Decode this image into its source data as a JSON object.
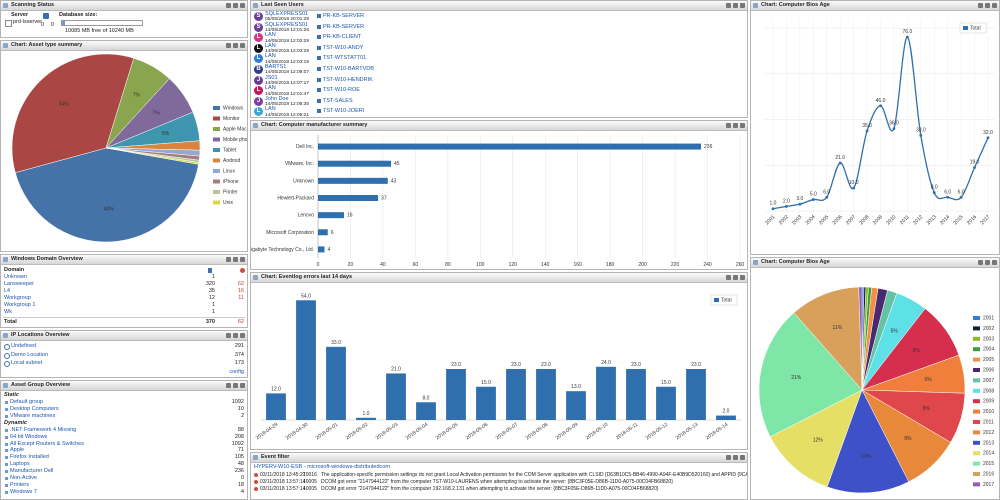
{
  "scanning_status": {
    "title": "Scanning Status",
    "server_label": "Server",
    "server": "prd-lsserver",
    "counts": [
      0,
      0
    ],
    "database_label": "Database size:",
    "database_size": "10085 MB free of 10240 MB"
  },
  "windows_domain": {
    "title": "Windows Domain Overview",
    "header": "Domain",
    "rows": [
      [
        "Unknown",
        1
      ],
      [
        "Lansweeper",
        320,
        62
      ],
      [
        "L4",
        35,
        16
      ],
      [
        "Workgroup",
        12,
        11
      ],
      [
        "Workgroup 1",
        1
      ],
      [
        "Wk",
        1
      ]
    ],
    "total": [
      "Total",
      370,
      62
    ]
  },
  "ip_locations": {
    "title": "IP Locations Overview",
    "rows": [
      [
        "Undefined",
        291
      ],
      [
        "Demo Location",
        374
      ],
      [
        "Local subnet",
        173
      ]
    ],
    "link": "config"
  },
  "asset_groups": {
    "title": "Asset Group Overview",
    "sections": [
      {
        "heading": "Static",
        "items": [
          [
            "Default group",
            1092
          ],
          [
            "Desktop Computers",
            10
          ],
          [
            "VMware machines",
            2
          ]
        ]
      },
      {
        "heading": "Dynamic",
        "items": [
          [
            ".NET Framework 4 Missing",
            88
          ],
          [
            "64 bit Windows",
            208
          ],
          [
            "All Except Routers & Switches",
            1092
          ],
          [
            "Apple",
            71
          ],
          [
            "Firefox Installed",
            105
          ],
          [
            "Laptops",
            48
          ],
          [
            "Manufacturer Dell",
            236
          ],
          [
            "Non-Active",
            0
          ],
          [
            "Printers",
            18
          ],
          [
            "Windows 7",
            4
          ]
        ]
      }
    ]
  },
  "last_seen_users": {
    "title": "Last Seen Users",
    "rows": [
      {
        "initial": "S",
        "color": "#6a3d9a",
        "name": "SQLEXPRESS01",
        "time": "05/05/2018 20:01:29",
        "computer": "PR-KB-SERVER"
      },
      {
        "initial": "S",
        "color": "#6a3d9a",
        "name": "SQLEXPRESS01",
        "time": "14/05/2018 12:01:26",
        "computer": "PR-KB-SERVER"
      },
      {
        "initial": "L",
        "color": "#d63384",
        "name": "LAN",
        "time": "14/05/2018 12:02:29",
        "computer": "PR-KB-CLIENT"
      },
      {
        "initial": "L",
        "color": "#111111",
        "name": "LAN",
        "time": "14/05/2018 12:03:28",
        "computer": "TST-W10-ANDY"
      },
      {
        "initial": "L",
        "color": "#2a7fd4",
        "name": "LAN",
        "time": "14/05/2018 12:03:19",
        "computer": "TST-WTSTATT01"
      },
      {
        "initial": "B",
        "color": "#2c3e8c",
        "name": "BARTS1",
        "time": "14/05/2018 12:09:07",
        "computer": "TST-W10-BARTVDB"
      },
      {
        "initial": "J",
        "color": "#6a3d9a",
        "name": "JS01",
        "time": "14/05/2018 12:07:17",
        "computer": "TST-W10-HENDRIK"
      },
      {
        "initial": "L",
        "color": "#c2185b",
        "name": "LAN",
        "time": "14/05/2018 12:01:47",
        "computer": "TST-W10-ROE"
      },
      {
        "initial": "J",
        "color": "#7b3fa0",
        "name": "John Doe",
        "time": "14/05/2018 12:06:35",
        "computer": "TST-SALES"
      },
      {
        "initial": "L",
        "color": "#3fa7d6",
        "name": "LAN",
        "time": "14/05/2018 12:05:21",
        "computer": "TST-W10-JOERI"
      }
    ]
  },
  "event_filter": {
    "title": "Event filter",
    "source": "HYPERV-W10-ESB - microsoft-windows-distributedcom",
    "rows": [
      [
        "03/11/2018 13:45:27",
        "10016",
        "The application-specific permission settings do not grant Local Activation permission for the COM Server application with CLSID {D63B10C5-BB46-4990-A94F-E40B9D520160} and APPID {9CA88EE3-ACB7-47C8-AFC4-AB702511C276}"
      ],
      [
        "03/11/2018 13:57:14",
        "10005",
        "DCOM got error \"2147944122\" from the computer TST-W10-LAURENS when attempting to activate the server: {8BC3F05E-D86B-11D0-A075-00C04FB68820}"
      ],
      [
        "03/11/2018 13:57:14",
        "10005",
        "DCOM got error \"2147944122\" from the computer 192.168.2.131 when attempting to activate the server: {8BC3F05E-D86B-11D0-A075-00C04FB68820}"
      ]
    ]
  },
  "chart_data": [
    {
      "type": "pie",
      "title": "Chart: Asset type summary",
      "categories": [
        "Windows",
        "Monitor",
        "Apple Mac",
        "Mobile phone",
        "Tablet",
        "Android",
        "Linux",
        "iPhone",
        "Printer",
        "Unix"
      ],
      "values": [
        43,
        34,
        7,
        7,
        5,
        1.6,
        1,
        0.7,
        0.4,
        0.3
      ],
      "value_labels": [
        "43%",
        "34%",
        "7%",
        "7%",
        "5%",
        null,
        null,
        null,
        null,
        null
      ],
      "colors": [
        "#4572a7",
        "#aa4643",
        "#89a54e",
        "#80699b",
        "#3d96ae",
        "#db843d",
        "#92a8cd",
        "#a47d7c",
        "#b5ca92",
        "#d8d84a"
      ]
    },
    {
      "type": "bar",
      "orientation": "horizontal",
      "title": "Chart: Computer manufacturer summary",
      "categories": [
        "Dell Inc.",
        "VMware, Inc.",
        "Unknown",
        "Hewlett-Packard",
        "Lenovo",
        "Microsoft Corporation",
        "Gigabyte Technology Co., Ltd."
      ],
      "values": [
        236,
        45,
        43,
        37,
        16,
        6,
        4
      ],
      "color": "#2f6fae",
      "xlim": [
        0,
        260
      ],
      "xticks": [
        0,
        20,
        40,
        60,
        80,
        100,
        120,
        140,
        160,
        180,
        200,
        220,
        240,
        260
      ],
      "grid": true
    },
    {
      "type": "bar",
      "title": "Chart: Eventlog errors last 14 days",
      "categories": [
        "2018-04-29",
        "2018-04-30",
        "2018-05-01",
        "2018-05-02",
        "2018-05-03",
        "2018-05-04",
        "2018-05-05",
        "2018-05-06",
        "2018-05-07",
        "2018-05-08",
        "2018-05-09",
        "2018-05-10",
        "2018-05-11",
        "2018-05-12",
        "2018-05-13",
        "2018-05-14"
      ],
      "series": [
        {
          "name": "Total",
          "color": "#2f6fae",
          "values": [
            12,
            54,
            33,
            1,
            21,
            8,
            23,
            15,
            23,
            23,
            13,
            24,
            23,
            15,
            23,
            2
          ],
          "value_labels": [
            "12.0",
            "54.0",
            "33.0",
            "1.0",
            "21.0",
            "8.0",
            "23.0",
            "15.0",
            "23.0",
            "23.0",
            "13.0",
            "24.0",
            "23.0",
            "15.0",
            "23.0",
            "2.0"
          ]
        }
      ],
      "ylim": [
        0,
        60
      ]
    },
    {
      "type": "line",
      "title": "Chart: Computer Bios Age",
      "categories": [
        "2001",
        "2002",
        "2003",
        "2004",
        "2005",
        "2006",
        "2007",
        "2008",
        "2009",
        "2010",
        "2011",
        "2012",
        "2013",
        "2014",
        "2015",
        "2016",
        "2017"
      ],
      "series": [
        {
          "name": "Total",
          "color": "#2f6fae",
          "values": [
            1,
            2,
            3,
            5,
            6,
            21,
            10,
            35,
            46,
            36,
            76,
            33,
            8,
            6,
            6,
            19,
            32
          ],
          "value_labels": [
            "1.0",
            "2.0",
            "3.0",
            "5.0",
            "6.0",
            "21.0",
            "10.0",
            "35.0",
            "46.0",
            "36.0",
            "76.0",
            "33.0",
            "8.0",
            "6.0",
            "6.0",
            "19.0",
            "32.0"
          ]
        }
      ],
      "ylim": [
        0,
        80
      ],
      "yticks": [
        0,
        20,
        40,
        60,
        80
      ],
      "grid": true
    },
    {
      "type": "pie",
      "title": "Chart: Computer Bios Age",
      "categories": [
        "2001",
        "2002",
        "2003",
        "2004",
        "2005",
        "2006",
        "2007",
        "2008",
        "2009",
        "2010",
        "2011",
        "2012",
        "2013",
        "2014",
        "2015",
        "2016",
        "2017"
      ],
      "values": [
        0.3,
        0.3,
        0.4,
        0.5,
        1,
        1.5,
        1.5,
        5,
        9,
        6,
        8,
        9,
        13,
        12,
        21,
        11,
        0.5
      ],
      "value_labels": [
        null,
        null,
        null,
        null,
        null,
        null,
        null,
        "5%",
        "9%",
        "6%",
        "8%",
        "9%",
        "13%",
        "12%",
        "21%",
        "11%",
        null
      ],
      "colors": [
        "#2f7ed8",
        "#0d233a",
        "#8bbc21",
        "#3a9b3a",
        "#f28f43",
        "#492970",
        "#66c2a5",
        "#5de0e6",
        "#d62f4e",
        "#f07f3c",
        "#e0474c",
        "#e8883a",
        "#3f51c8",
        "#e5e065",
        "#7ee6a6",
        "#d9a05b",
        "#9b59b6"
      ]
    }
  ]
}
